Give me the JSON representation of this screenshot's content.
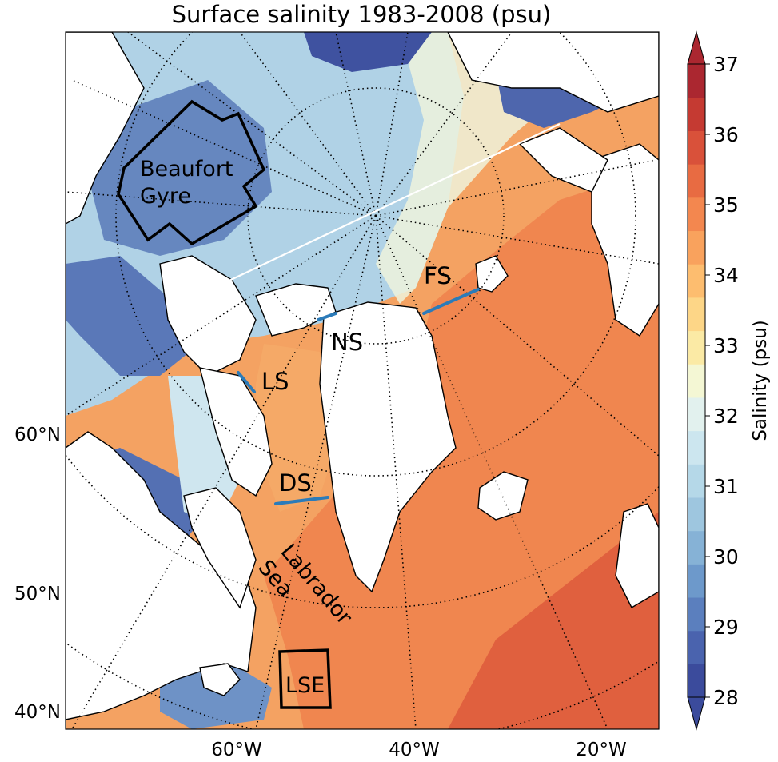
{
  "title": "Surface salinity 1983-2008 (psu)",
  "map": {
    "regions": [
      {
        "id": "beaufort-gyre",
        "label_lines": [
          "Beaufort",
          "Gyre"
        ]
      },
      {
        "id": "lse",
        "label_lines": [
          "LSE"
        ]
      }
    ],
    "straits": [
      {
        "id": "fs",
        "label": "FS"
      },
      {
        "id": "ns",
        "label": "NS"
      },
      {
        "id": "ls",
        "label": "LS"
      },
      {
        "id": "ds",
        "label": "DS"
      }
    ],
    "sea_label_lines": [
      "Labrador",
      "Sea"
    ],
    "lat_labels": [
      "60°N",
      "50°N",
      "40°N"
    ],
    "lon_labels": [
      "60°W",
      "40°W",
      "20°W"
    ]
  },
  "colorbar": {
    "label": "Salinity (psu)",
    "min": 28,
    "max": 37,
    "step": 0.5,
    "ticks": [
      28,
      29,
      30,
      31,
      32,
      33,
      34,
      35,
      36,
      37
    ],
    "extend": "both",
    "colors": [
      "#3b4b9c",
      "#4a63ae",
      "#5b7fbe",
      "#6d99cb",
      "#86b2d6",
      "#9ec6df",
      "#b5d8e8",
      "#cce6ef",
      "#e2f1ee",
      "#f4f7d4",
      "#fbeaa5",
      "#fdd687",
      "#fdbd6f",
      "#f9a25d",
      "#f3874f",
      "#e86b42",
      "#d9513a",
      "#c53a32",
      "#ab2730"
    ]
  },
  "colors": {
    "land": "#ffffff",
    "coast": "#000000",
    "strait_line": "#2b7bb9",
    "box": "#000000"
  }
}
